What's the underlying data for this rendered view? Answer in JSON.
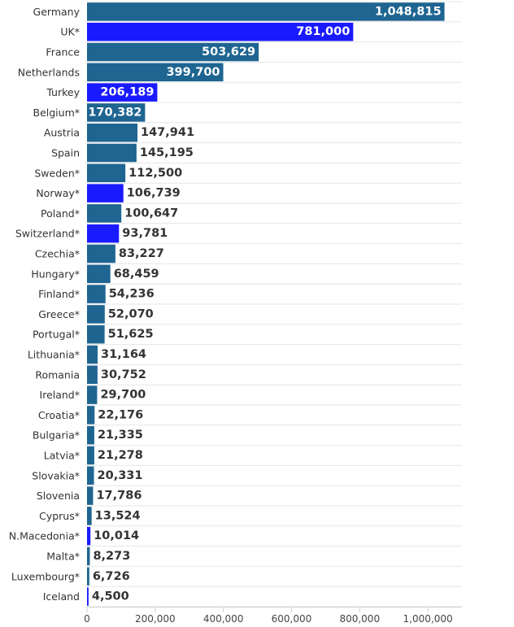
{
  "chart_data": {
    "type": "bar",
    "orientation": "horizontal",
    "title": "",
    "xlabel": "",
    "ylabel": "",
    "xlim": [
      0,
      1100000
    ],
    "xticks": [
      0,
      200000,
      400000,
      600000,
      800000,
      1000000
    ],
    "xtick_labels": [
      "0",
      "200,000",
      "400,000",
      "600,000",
      "800,000",
      "1,000,000"
    ],
    "grid": true,
    "legend": "none",
    "colors": {
      "eu": "#1f6591",
      "non_eu": "#1a1aff"
    },
    "categories": [
      "Germany",
      "UK*",
      "France",
      "Netherlands",
      "Turkey",
      "Belgium*",
      "Austria",
      "Spain",
      "Sweden*",
      "Norway*",
      "Poland*",
      "Switzerland*",
      "Czechia*",
      "Hungary*",
      "Finland*",
      "Greece*",
      "Portugal*",
      "Lithuania*",
      "Romania",
      "Ireland*",
      "Croatia*",
      "Bulgaria*",
      "Latvia*",
      "Slovakia*",
      "Slovenia",
      "Cyprus*",
      "N.Macedonia*",
      "Malta*",
      "Luxembourg*",
      "Iceland"
    ],
    "values": [
      1048815,
      781000,
      503629,
      399700,
      206189,
      170382,
      147941,
      145195,
      112500,
      106739,
      100647,
      93781,
      83227,
      68459,
      54236,
      52070,
      51625,
      31164,
      30752,
      29700,
      22176,
      21335,
      21278,
      20331,
      17786,
      13524,
      10014,
      8273,
      6726,
      4500
    ],
    "value_labels": [
      "1,048,815",
      "781,000",
      "503,629",
      "399,700",
      "206,189",
      "170,382",
      "147,941",
      "145,195",
      "112,500",
      "106,739",
      "100,647",
      "93,781",
      "83,227",
      "68,459",
      "54,236",
      "52,070",
      "51,625",
      "31,164",
      "30,752",
      "29,700",
      "22,176",
      "21,335",
      "21,278",
      "20,331",
      "17,786",
      "13,524",
      "10,014",
      "8,273",
      "6,726",
      "4,500"
    ],
    "bar_color_group": [
      "eu",
      "non_eu",
      "eu",
      "eu",
      "non_eu",
      "eu",
      "eu",
      "eu",
      "eu",
      "non_eu",
      "eu",
      "non_eu",
      "eu",
      "eu",
      "eu",
      "eu",
      "eu",
      "eu",
      "eu",
      "eu",
      "eu",
      "eu",
      "eu",
      "eu",
      "eu",
      "eu",
      "non_eu",
      "eu",
      "eu",
      "non_eu"
    ],
    "label_inside": [
      true,
      true,
      true,
      true,
      true,
      true,
      false,
      false,
      false,
      false,
      false,
      false,
      false,
      false,
      false,
      false,
      false,
      false,
      false,
      false,
      false,
      false,
      false,
      false,
      false,
      false,
      false,
      false,
      false,
      false
    ]
  }
}
